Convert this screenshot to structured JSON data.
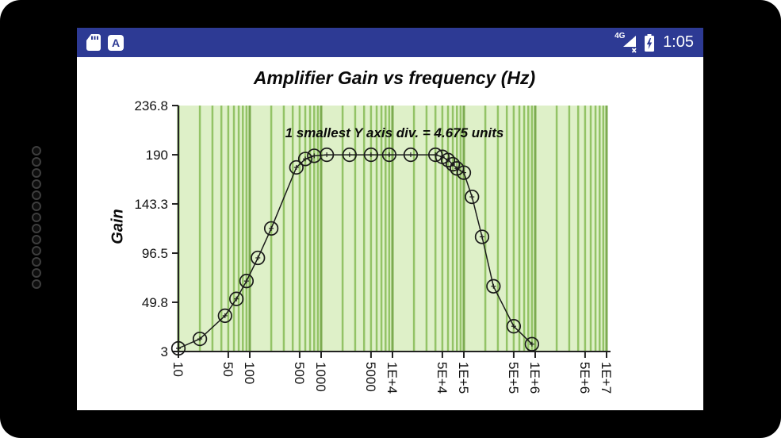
{
  "status_bar": {
    "time": "1:05",
    "network_label": "4G",
    "a_icon_label": "A",
    "background_color": "#2d3a94"
  },
  "chart_data": {
    "type": "line",
    "title": "Amplifier Gain vs frequency (Hz)",
    "annotation": "1 smallest Y axis div. = 4.675 units",
    "ylabel": "Gain",
    "x_scale": "log",
    "xlim": [
      10,
      10000000
    ],
    "ylim": [
      3,
      236.8
    ],
    "y_ticks": [
      236.8,
      190,
      143.3,
      96.5,
      49.8,
      3
    ],
    "y_smallest_division": 4.675,
    "x_tick_values": [
      10,
      50,
      100,
      500,
      1000,
      5000,
      10000,
      50000,
      100000,
      500000,
      1000000,
      5000000,
      10000000
    ],
    "x_tick_labels": [
      "10",
      "50",
      "100",
      "500",
      "1000",
      "5000",
      "1E+4",
      "5E+4",
      "1E+5",
      "5E+5",
      "1E+6",
      "5E+6",
      "1E+7"
    ],
    "points": [
      [
        10,
        6
      ],
      [
        20,
        15
      ],
      [
        45,
        37
      ],
      [
        65,
        53
      ],
      [
        90,
        70
      ],
      [
        130,
        92
      ],
      [
        200,
        120
      ],
      [
        450,
        178
      ],
      [
        600,
        186
      ],
      [
        800,
        189
      ],
      [
        1200,
        190
      ],
      [
        2500,
        190
      ],
      [
        5000,
        190
      ],
      [
        9000,
        190
      ],
      [
        18000,
        190
      ],
      [
        40000,
        190
      ],
      [
        50000,
        188
      ],
      [
        60000,
        185
      ],
      [
        70000,
        181
      ],
      [
        80000,
        177
      ],
      [
        100000,
        173
      ],
      [
        130000,
        150
      ],
      [
        180000,
        112
      ],
      [
        260000,
        65
      ],
      [
        500000,
        27
      ],
      [
        900000,
        10
      ]
    ],
    "marker": "open-circle-plus",
    "series_color": "#1a1a1a",
    "grid": {
      "band_fill": "#def0c8",
      "line_color": "#93c366",
      "line_color_major": "#7cab50",
      "axis_color": "#222222"
    },
    "legend": "none"
  }
}
